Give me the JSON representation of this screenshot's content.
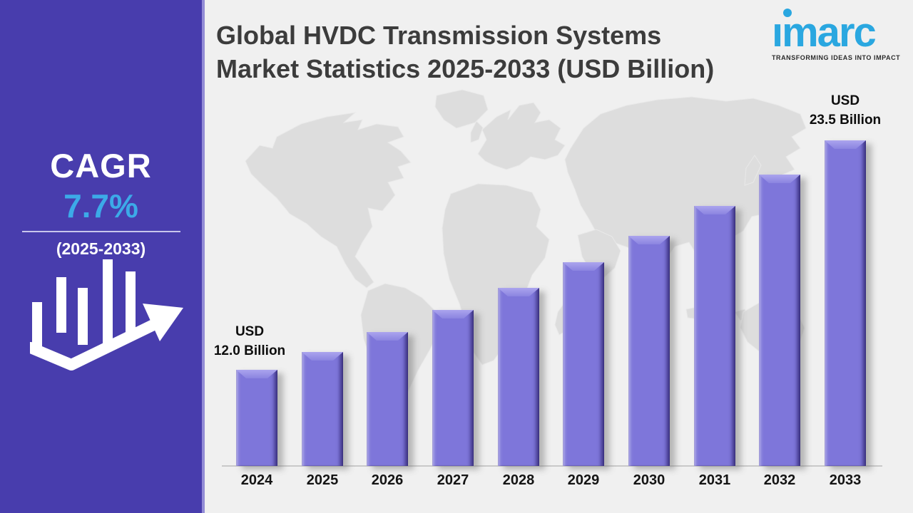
{
  "sidebar": {
    "cagr_label": "CAGR",
    "cagr_value": "7.7%",
    "cagr_period": "(2025-2033)",
    "background_color": "#483dad",
    "value_color": "#3caae8"
  },
  "header": {
    "title_line1": "Global HVDC Transmission Systems",
    "title_line2": "Market Statistics 2025-2033 (USD Billion)"
  },
  "logo": {
    "text": "imarc",
    "tagline": "TRANSFORMING IDEAS INTO IMPACT",
    "color": "#2aa7e0"
  },
  "chart_data": {
    "type": "bar",
    "title": "Global HVDC Transmission Systems Market Statistics 2025-2033 (USD Billion)",
    "unit": "USD Billion",
    "categories": [
      "2024",
      "2025",
      "2026",
      "2027",
      "2028",
      "2029",
      "2030",
      "2031",
      "2032",
      "2033"
    ],
    "values": [
      12.0,
      12.9,
      13.9,
      15.0,
      16.1,
      17.4,
      18.7,
      20.2,
      21.8,
      23.5
    ],
    "values_note": "Only 2024 (USD 12.0 Billion) and 2033 (USD 23.5 Billion) are labeled on the chart; intermediate values estimated from the 7.7% CAGR",
    "first_label": {
      "line1": "USD",
      "line2": "12.0 Billion"
    },
    "last_label": {
      "line1": "USD",
      "line2": "23.5 Billion"
    },
    "cagr": "7.7%",
    "cagr_period": "2025-2033",
    "bar_color": "#7e76da",
    "background": "world-map silhouette",
    "legend": "none",
    "grid": "off"
  }
}
